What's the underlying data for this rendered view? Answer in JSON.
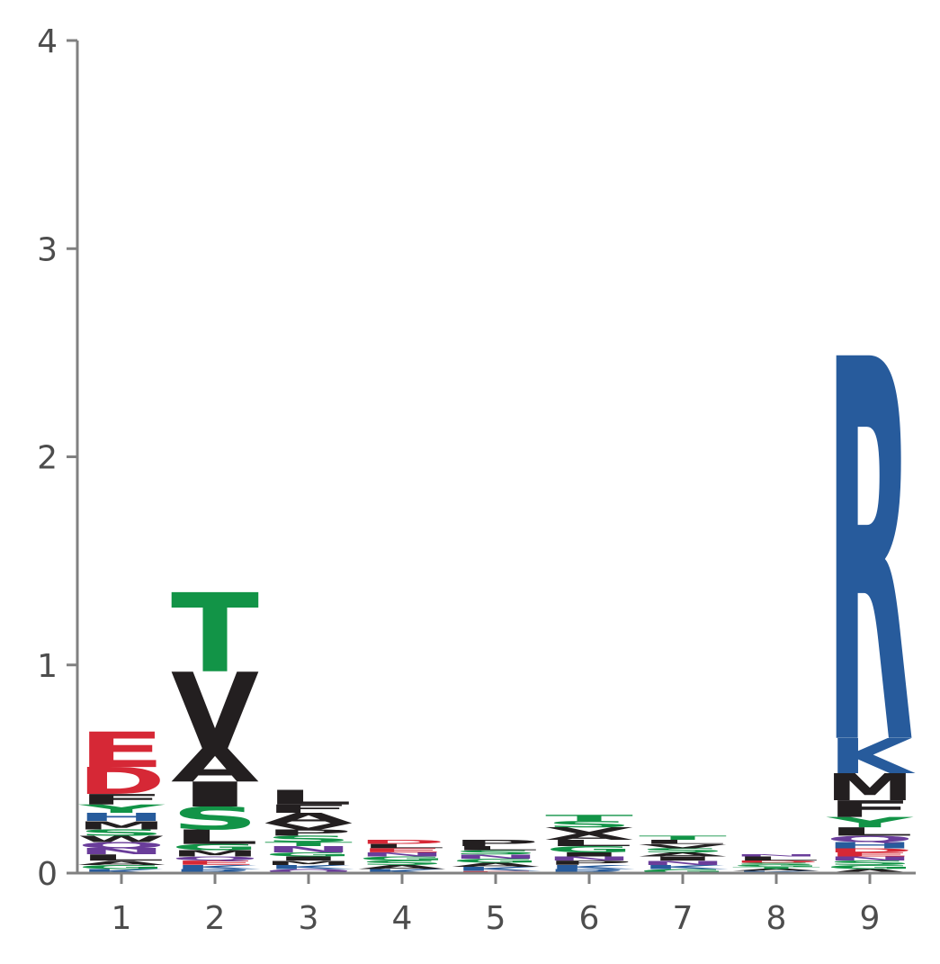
{
  "chart_data": {
    "type": "sequence-logo",
    "title": "",
    "xlabel": "",
    "ylabel": "",
    "ylim": [
      0,
      4
    ],
    "yticks": [
      0,
      1,
      2,
      3,
      4
    ],
    "positions": [
      1,
      2,
      3,
      4,
      5,
      6,
      7,
      8,
      9
    ],
    "grid": false,
    "legend": "none",
    "colors": {
      "acidic": "#d62836",
      "basic": "#275b9c",
      "polar": "#129447",
      "hydrophobic": "#231f20",
      "amide": "#6a3d9a",
      "other": "#3d8f8a"
    },
    "stacks": [
      {
        "position": 1,
        "letters": [
          {
            "aa": "E",
            "height": 0.17,
            "color": "#d62836"
          },
          {
            "aa": "D",
            "height": 0.13,
            "color": "#d62836"
          },
          {
            "aa": "F",
            "height": 0.05,
            "color": "#231f20"
          },
          {
            "aa": "Y",
            "height": 0.04,
            "color": "#129447"
          },
          {
            "aa": "H",
            "height": 0.04,
            "color": "#275b9c"
          },
          {
            "aa": "M",
            "height": 0.04,
            "color": "#231f20"
          },
          {
            "aa": "S",
            "height": 0.03,
            "color": "#129447"
          },
          {
            "aa": "W",
            "height": 0.03,
            "color": "#231f20"
          },
          {
            "aa": "Q",
            "height": 0.03,
            "color": "#6a3d9a"
          },
          {
            "aa": "N",
            "height": 0.03,
            "color": "#6a3d9a"
          },
          {
            "aa": "L",
            "height": 0.03,
            "color": "#231f20"
          },
          {
            "aa": "A",
            "height": 0.02,
            "color": "#231f20"
          },
          {
            "aa": "G",
            "height": 0.02,
            "color": "#129447"
          },
          {
            "aa": "K",
            "height": 0.02,
            "color": "#275b9c"
          }
        ]
      },
      {
        "position": 2,
        "letters": [
          {
            "aa": "T",
            "height": 0.38,
            "color": "#129447"
          },
          {
            "aa": "V",
            "height": 0.37,
            "color": "#231f20"
          },
          {
            "aa": "A",
            "height": 0.16,
            "color": "#231f20"
          },
          {
            "aa": "I",
            "height": 0.12,
            "color": "#231f20"
          },
          {
            "aa": "S",
            "height": 0.11,
            "color": "#129447"
          },
          {
            "aa": "L",
            "height": 0.07,
            "color": "#231f20"
          },
          {
            "aa": "G",
            "height": 0.03,
            "color": "#129447"
          },
          {
            "aa": "M",
            "height": 0.03,
            "color": "#231f20"
          },
          {
            "aa": "Q",
            "height": 0.02,
            "color": "#6a3d9a"
          },
          {
            "aa": "E",
            "height": 0.02,
            "color": "#d62836"
          },
          {
            "aa": "K",
            "height": 0.02,
            "color": "#275b9c"
          },
          {
            "aa": "R",
            "height": 0.02,
            "color": "#275b9c"
          }
        ]
      },
      {
        "position": 3,
        "letters": [
          {
            "aa": "L",
            "height": 0.07,
            "color": "#231f20"
          },
          {
            "aa": "F",
            "height": 0.04,
            "color": "#231f20"
          },
          {
            "aa": "A",
            "height": 0.05,
            "color": "#231f20"
          },
          {
            "aa": "V",
            "height": 0.03,
            "color": "#231f20"
          },
          {
            "aa": "P",
            "height": 0.03,
            "color": "#231f20"
          },
          {
            "aa": "S",
            "height": 0.03,
            "color": "#129447"
          },
          {
            "aa": "T",
            "height": 0.02,
            "color": "#129447"
          },
          {
            "aa": "N",
            "height": 0.03,
            "color": "#6a3d9a"
          },
          {
            "aa": "G",
            "height": 0.02,
            "color": "#129447"
          },
          {
            "aa": "I",
            "height": 0.02,
            "color": "#231f20"
          },
          {
            "aa": "M",
            "height": 0.02,
            "color": "#231f20"
          },
          {
            "aa": "K",
            "height": 0.02,
            "color": "#275b9c"
          },
          {
            "aa": "Q",
            "height": 0.02,
            "color": "#6a3d9a"
          }
        ]
      },
      {
        "position": 4,
        "letters": [
          {
            "aa": "D",
            "height": 0.02,
            "color": "#d62836"
          },
          {
            "aa": "L",
            "height": 0.02,
            "color": "#231f20"
          },
          {
            "aa": "E",
            "height": 0.02,
            "color": "#d62836"
          },
          {
            "aa": "N",
            "height": 0.02,
            "color": "#6a3d9a"
          },
          {
            "aa": "G",
            "height": 0.02,
            "color": "#129447"
          },
          {
            "aa": "S",
            "height": 0.02,
            "color": "#129447"
          },
          {
            "aa": "A",
            "height": 0.02,
            "color": "#231f20"
          },
          {
            "aa": "K",
            "height": 0.02,
            "color": "#275b9c"
          }
        ]
      },
      {
        "position": 5,
        "letters": [
          {
            "aa": "P",
            "height": 0.03,
            "color": "#231f20"
          },
          {
            "aa": "L",
            "height": 0.02,
            "color": "#231f20"
          },
          {
            "aa": "S",
            "height": 0.02,
            "color": "#129447"
          },
          {
            "aa": "N",
            "height": 0.02,
            "color": "#6a3d9a"
          },
          {
            "aa": "G",
            "height": 0.02,
            "color": "#129447"
          },
          {
            "aa": "A",
            "height": 0.02,
            "color": "#231f20"
          },
          {
            "aa": "K",
            "height": 0.02,
            "color": "#275b9c"
          },
          {
            "aa": "E",
            "height": 0.01,
            "color": "#d62836"
          }
        ]
      },
      {
        "position": 6,
        "letters": [
          {
            "aa": "T",
            "height": 0.03,
            "color": "#129447"
          },
          {
            "aa": "S",
            "height": 0.03,
            "color": "#129447"
          },
          {
            "aa": "V",
            "height": 0.03,
            "color": "#231f20"
          },
          {
            "aa": "A",
            "height": 0.03,
            "color": "#231f20"
          },
          {
            "aa": "L",
            "height": 0.03,
            "color": "#231f20"
          },
          {
            "aa": "G",
            "height": 0.03,
            "color": "#129447"
          },
          {
            "aa": "I",
            "height": 0.02,
            "color": "#231f20"
          },
          {
            "aa": "N",
            "height": 0.02,
            "color": "#6a3d9a"
          },
          {
            "aa": "P",
            "height": 0.02,
            "color": "#231f20"
          },
          {
            "aa": "K",
            "height": 0.02,
            "color": "#275b9c"
          },
          {
            "aa": "R",
            "height": 0.02,
            "color": "#275b9c"
          }
        ]
      },
      {
        "position": 7,
        "letters": [
          {
            "aa": "T",
            "height": 0.02,
            "color": "#129447"
          },
          {
            "aa": "L",
            "height": 0.02,
            "color": "#231f20"
          },
          {
            "aa": "V",
            "height": 0.02,
            "color": "#231f20"
          },
          {
            "aa": "S",
            "height": 0.02,
            "color": "#129447"
          },
          {
            "aa": "A",
            "height": 0.02,
            "color": "#231f20"
          },
          {
            "aa": "I",
            "height": 0.02,
            "color": "#231f20"
          },
          {
            "aa": "N",
            "height": 0.02,
            "color": "#6a3d9a"
          },
          {
            "aa": "K",
            "height": 0.02,
            "color": "#275b9c"
          },
          {
            "aa": "G",
            "height": 0.02,
            "color": "#129447"
          }
        ]
      },
      {
        "position": 8,
        "letters": [
          {
            "aa": "N",
            "height": 0.01,
            "color": "#6a3d9a"
          },
          {
            "aa": "L",
            "height": 0.02,
            "color": "#231f20"
          },
          {
            "aa": "D",
            "height": 0.01,
            "color": "#d62836"
          },
          {
            "aa": "S",
            "height": 0.01,
            "color": "#129447"
          },
          {
            "aa": "G",
            "height": 0.01,
            "color": "#129447"
          },
          {
            "aa": "T",
            "height": 0.01,
            "color": "#129447"
          },
          {
            "aa": "A",
            "height": 0.01,
            "color": "#231f20"
          },
          {
            "aa": "K",
            "height": 0.01,
            "color": "#275b9c"
          }
        ]
      },
      {
        "position": 9,
        "letters": [
          {
            "aa": "R",
            "height": 1.84,
            "color": "#275b9c"
          },
          {
            "aa": "K",
            "height": 0.17,
            "color": "#275b9c"
          },
          {
            "aa": "M",
            "height": 0.13,
            "color": "#231f20"
          },
          {
            "aa": "F",
            "height": 0.08,
            "color": "#231f20"
          },
          {
            "aa": "Y",
            "height": 0.05,
            "color": "#129447"
          },
          {
            "aa": "L",
            "height": 0.04,
            "color": "#231f20"
          },
          {
            "aa": "Q",
            "height": 0.03,
            "color": "#6a3d9a"
          },
          {
            "aa": "H",
            "height": 0.03,
            "color": "#275b9c"
          },
          {
            "aa": "D",
            "height": 0.02,
            "color": "#d62836"
          },
          {
            "aa": "E",
            "height": 0.02,
            "color": "#d62836"
          },
          {
            "aa": "N",
            "height": 0.02,
            "color": "#6a3d9a"
          },
          {
            "aa": "S",
            "height": 0.02,
            "color": "#129447"
          },
          {
            "aa": "G",
            "height": 0.02,
            "color": "#129447"
          },
          {
            "aa": "A",
            "height": 0.02,
            "color": "#231f20"
          }
        ]
      }
    ]
  }
}
